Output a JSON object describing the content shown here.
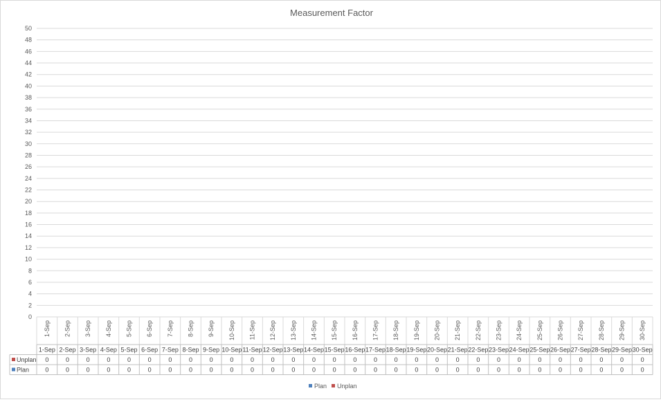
{
  "chart_data": {
    "type": "bar",
    "title": "Measurement Factor",
    "categories": [
      "1-Sep",
      "2-Sep",
      "3-Sep",
      "4-Sep",
      "5-Sep",
      "6-Sep",
      "7-Sep",
      "8-Sep",
      "9-Sep",
      "10-Sep",
      "11-Sep",
      "12-Sep",
      "13-Sep",
      "14-Sep",
      "15-Sep",
      "16-Sep",
      "17-Sep",
      "18-Sep",
      "19-Sep",
      "20-Sep",
      "21-Sep",
      "22-Sep",
      "23-Sep",
      "24-Sep",
      "25-Sep",
      "26-Sep",
      "27-Sep",
      "28-Sep",
      "29-Sep",
      "30-Sep"
    ],
    "series": [
      {
        "name": "Plan",
        "color": "#4f81bd",
        "values": [
          0,
          0,
          0,
          0,
          0,
          0,
          0,
          0,
          0,
          0,
          0,
          0,
          0,
          0,
          0,
          0,
          0,
          0,
          0,
          0,
          0,
          0,
          0,
          0,
          0,
          0,
          0,
          0,
          0,
          0
        ]
      },
      {
        "name": "Unplan",
        "color": "#c0504d",
        "values": [
          0,
          0,
          0,
          0,
          0,
          0,
          0,
          0,
          0,
          0,
          0,
          0,
          0,
          0,
          0,
          0,
          0,
          0,
          0,
          0,
          0,
          0,
          0,
          0,
          0,
          0,
          0,
          0,
          0,
          0
        ]
      }
    ],
    "ylim": [
      0,
      50
    ],
    "yticks": [
      0,
      2,
      4,
      6,
      8,
      10,
      12,
      14,
      16,
      18,
      20,
      22,
      24,
      26,
      28,
      30,
      32,
      34,
      36,
      38,
      40,
      42,
      44,
      46,
      48,
      50
    ],
    "grid": true,
    "legend": "bottom",
    "data_table": {
      "row_order": [
        "Unplan",
        "Plan"
      ]
    }
  }
}
